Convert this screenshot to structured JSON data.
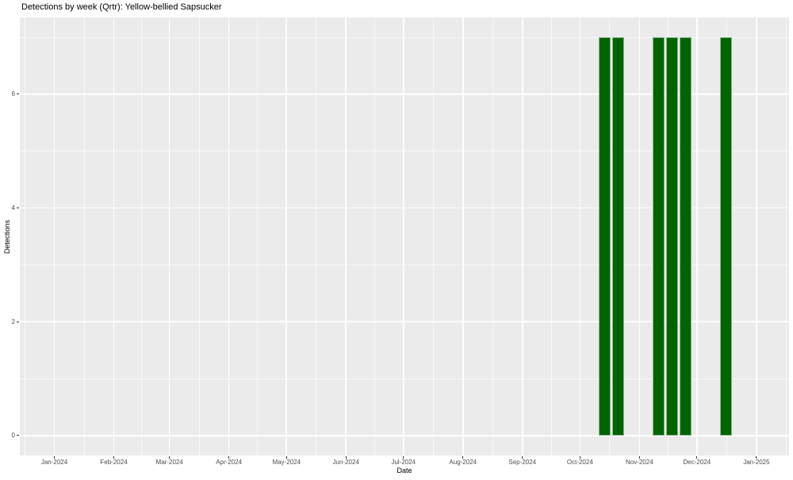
{
  "chart_data": {
    "type": "bar",
    "title": "Detections by week (Qrtr): Yellow-bellied Sapsucker",
    "xlabel": "Date",
    "ylabel": "Detections",
    "panel_bg": "#EBEBEB",
    "grid_color_major": "rgba(255,255,255,1)",
    "grid_color_minor": "rgba(255,255,255,0.7)",
    "bar_fill": "#006400",
    "bar_edge": "rgba(235,235,235,0.6)",
    "tick_mark_color": "#333333",
    "tick_label_color": "#4D4D4D",
    "x_domain": [
      "2023-12-14",
      "2025-01-18"
    ],
    "y_domain": [
      -0.35,
      7.35
    ],
    "y_major_ticks": [
      0,
      2,
      4,
      6
    ],
    "y_minor_ticks": [
      1,
      3,
      5,
      7
    ],
    "x_ticks": [
      {
        "date": "2024-01-01",
        "label": "Jan-2024"
      },
      {
        "date": "2024-02-01",
        "label": "Feb-2024"
      },
      {
        "date": "2024-03-01",
        "label": "Mar-2024"
      },
      {
        "date": "2024-04-01",
        "label": "Apr-2024"
      },
      {
        "date": "2024-05-01",
        "label": "May-2024"
      },
      {
        "date": "2024-06-01",
        "label": "Jun-2024"
      },
      {
        "date": "2024-07-01",
        "label": "Jul-2024"
      },
      {
        "date": "2024-08-01",
        "label": "Aug-2024"
      },
      {
        "date": "2024-09-01",
        "label": "Sep-2024"
      },
      {
        "date": "2024-10-01",
        "label": "Oct-2024"
      },
      {
        "date": "2024-11-01",
        "label": "Nov-2024"
      },
      {
        "date": "2024-12-01",
        "label": "Dec-2024"
      },
      {
        "date": "2025-01-01",
        "label": "Jan-2025"
      }
    ],
    "bar_width_days": 6.3,
    "bars": [
      {
        "week_start": "2024-10-14",
        "value": 7
      },
      {
        "week_start": "2024-10-21",
        "value": 7
      },
      {
        "week_start": "2024-11-11",
        "value": 7
      },
      {
        "week_start": "2024-11-18",
        "value": 7
      },
      {
        "week_start": "2024-11-25",
        "value": 7
      },
      {
        "week_start": "2024-12-16",
        "value": 7
      }
    ]
  }
}
